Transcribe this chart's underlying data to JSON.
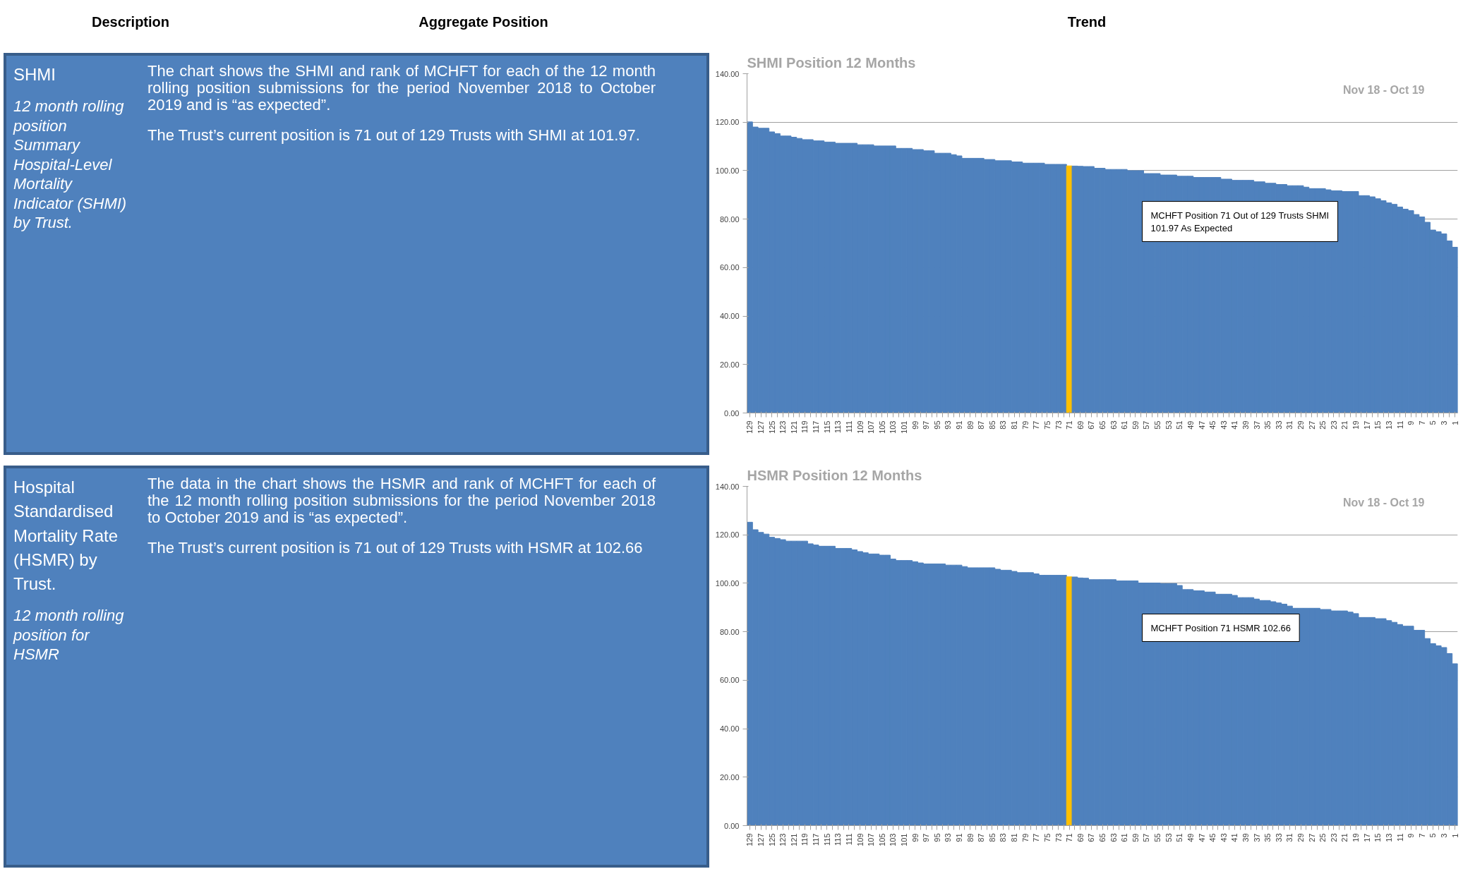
{
  "chart_data": [
    {
      "type": "other",
      "annotations": [
        "Description",
        "Aggregate Position",
        "Trend"
      ]
    },
    {
      "type": "other",
      "title": "SHMI",
      "annotations": [
        "12 month rolling position Summary Hospital-Level Mortality Indicator (SHMI) by Trust.",
        "The chart shows the SHMI and rank of MCHFT for each of the 12 month rolling position submissions for the period November 2018 to October 2019 and is “as expected”.",
        "The Trust’s current position is 71 out of 129 Trusts with SHMI at 101.97."
      ]
    },
    {
      "type": "bar",
      "title": "SHMI Position 12 Months",
      "annotations": [
        "Nov 18 - Oct 19",
        "MCHFT Position 71 Out of 129 Trusts SHMI 101.97 As Expected"
      ],
      "ylim": [
        0,
        140
      ],
      "yticks": [
        {
          "value": 0,
          "label": "0.00"
        },
        {
          "value": 20,
          "label": "20.00"
        },
        {
          "value": 40,
          "label": "40.00"
        },
        {
          "value": 60,
          "label": "60.00"
        },
        {
          "value": 80,
          "label": "80.00"
        },
        {
          "value": 100,
          "label": "100.00"
        },
        {
          "value": 120,
          "label": "120.00"
        },
        {
          "value": 140,
          "label": "140.00"
        }
      ],
      "grid": "y",
      "categories": [
        "129",
        null,
        "127",
        null,
        "125",
        null,
        "123",
        null,
        "121",
        null,
        "119",
        null,
        "117",
        null,
        "115",
        null,
        "113",
        null,
        "111",
        null,
        "109",
        null,
        "107",
        null,
        "105",
        null,
        "103",
        null,
        "101",
        null,
        "99",
        null,
        "97",
        null,
        "95",
        null,
        "93",
        null,
        "91",
        null,
        "89",
        null,
        "87",
        null,
        "85",
        null,
        "83",
        null,
        "81",
        null,
        "79",
        null,
        "77",
        null,
        "75",
        null,
        "73",
        null,
        "71",
        null,
        "69",
        null,
        "67",
        null,
        "65",
        null,
        "63",
        null,
        "61",
        null,
        "59",
        null,
        "57",
        null,
        "55",
        null,
        "53",
        null,
        "51",
        null,
        "49",
        null,
        "47",
        null,
        "45",
        null,
        "43",
        null,
        "41",
        null,
        "39",
        null,
        "37",
        null,
        "35",
        null,
        "33",
        null,
        "31",
        null,
        "29",
        null,
        "27",
        null,
        "25",
        null,
        "23",
        null,
        "21",
        null,
        "19",
        null,
        "17",
        null,
        "15",
        null,
        "13",
        null,
        "11",
        null,
        "9",
        null,
        "7",
        null,
        "5",
        null,
        "3",
        null,
        "1"
      ],
      "values": [
        120.1,
        118.0,
        117.5,
        117.5,
        116.0,
        115.3,
        114.3,
        114.3,
        113.8,
        113.3,
        112.8,
        112.8,
        112.3,
        112.3,
        111.8,
        111.8,
        111.3,
        111.3,
        111.3,
        111.3,
        110.7,
        110.7,
        110.7,
        110.2,
        110.2,
        110.2,
        110.2,
        109.2,
        109.2,
        109.2,
        108.7,
        108.7,
        108.2,
        108.2,
        107.2,
        107.2,
        107.2,
        106.6,
        106.1,
        105.1,
        105.1,
        105.1,
        105.1,
        104.6,
        104.6,
        104.1,
        104.1,
        104.1,
        103.6,
        103.6,
        103.1,
        103.1,
        103.1,
        103.1,
        102.6,
        102.6,
        102.6,
        102.6,
        101.97,
        101.9,
        101.8,
        101.7,
        101.7,
        101.0,
        101.0,
        100.5,
        100.5,
        100.5,
        100.5,
        100.0,
        100.0,
        100.0,
        98.8,
        98.8,
        98.8,
        98.2,
        98.2,
        98.2,
        97.7,
        97.7,
        97.7,
        97.2,
        97.2,
        97.2,
        97.2,
        97.2,
        96.5,
        96.5,
        96.0,
        96.0,
        96.0,
        96.0,
        95.4,
        95.4,
        94.8,
        94.8,
        94.3,
        94.3,
        93.8,
        93.8,
        93.8,
        93.2,
        92.6,
        92.6,
        92.6,
        92.1,
        91.7,
        91.7,
        91.4,
        91.4,
        91.4,
        89.7,
        89.7,
        89.2,
        88.4,
        87.6,
        86.7,
        86.1,
        85.0,
        84.1,
        83.5,
        81.9,
        80.9,
        78.7,
        75.5,
        74.8,
        73.9,
        71.0,
        68.4
      ],
      "colors": [
        "#4f81bd",
        "#4f81bd",
        "#4f81bd",
        "#4f81bd",
        "#4f81bd",
        "#4f81bd",
        "#4f81bd",
        "#4f81bd",
        "#4f81bd",
        "#4f81bd",
        "#4f81bd",
        "#4f81bd",
        "#4f81bd",
        "#4f81bd",
        "#4f81bd",
        "#4f81bd",
        "#4f81bd",
        "#4f81bd",
        "#4f81bd",
        "#4f81bd",
        "#4f81bd",
        "#4f81bd",
        "#4f81bd",
        "#4f81bd",
        "#4f81bd",
        "#4f81bd",
        "#4f81bd",
        "#4f81bd",
        "#4f81bd",
        "#4f81bd",
        "#4f81bd",
        "#4f81bd",
        "#4f81bd",
        "#4f81bd",
        "#4f81bd",
        "#4f81bd",
        "#4f81bd",
        "#4f81bd",
        "#4f81bd",
        "#4f81bd",
        "#4f81bd",
        "#4f81bd",
        "#4f81bd",
        "#4f81bd",
        "#4f81bd",
        "#4f81bd",
        "#4f81bd",
        "#4f81bd",
        "#4f81bd",
        "#4f81bd",
        "#4f81bd",
        "#4f81bd",
        "#4f81bd",
        "#4f81bd",
        "#4f81bd",
        "#4f81bd",
        "#4f81bd",
        "#4f81bd",
        "#ffc000",
        "#4f81bd",
        "#4f81bd",
        "#4f81bd",
        "#4f81bd",
        "#4f81bd",
        "#4f81bd",
        "#4f81bd",
        "#4f81bd",
        "#4f81bd",
        "#4f81bd",
        "#4f81bd",
        "#4f81bd",
        "#4f81bd",
        "#4f81bd",
        "#4f81bd",
        "#4f81bd",
        "#4f81bd",
        "#4f81bd",
        "#4f81bd",
        "#4f81bd",
        "#4f81bd",
        "#4f81bd",
        "#4f81bd",
        "#4f81bd",
        "#4f81bd",
        "#4f81bd",
        "#4f81bd",
        "#4f81bd",
        "#4f81bd",
        "#4f81bd",
        "#4f81bd",
        "#4f81bd",
        "#4f81bd",
        "#4f81bd",
        "#4f81bd",
        "#4f81bd",
        "#4f81bd",
        "#4f81bd",
        "#4f81bd",
        "#4f81bd",
        "#4f81bd",
        "#4f81bd",
        "#4f81bd",
        "#4f81bd",
        "#4f81bd",
        "#4f81bd",
        "#4f81bd",
        "#4f81bd",
        "#4f81bd",
        "#4f81bd",
        "#4f81bd",
        "#4f81bd",
        "#4f81bd",
        "#4f81bd",
        "#4f81bd",
        "#4f81bd",
        "#4f81bd",
        "#4f81bd",
        "#4f81bd",
        "#4f81bd",
        "#4f81bd",
        "#4f81bd",
        "#4f81bd",
        "#4f81bd",
        "#4f81bd",
        "#4f81bd",
        "#4f81bd",
        "#4f81bd",
        "#4f81bd",
        "#4f81bd"
      ]
    },
    {
      "type": "other",
      "title": "Hospital Standardised Mortality Rate (HSMR) by Trust.",
      "annotations": [
        "12 month rolling position for HSMR",
        "The data in the chart shows the HSMR and rank of MCHFT for each of the 12 month rolling position submissions for the period November 2018 to October 2019 and is “as expected”.",
        "The Trust’s current position is 71 out of 129 Trusts with HSMR at 102.66"
      ]
    },
    {
      "type": "bar",
      "title": "HSMR Position 12 Months",
      "annotations": [
        "Nov 18 - Oct 19",
        "MCHFT Position 71 HSMR 102.66"
      ],
      "ylim": [
        0,
        140
      ],
      "yticks": [
        {
          "value": 0,
          "label": "0.00"
        },
        {
          "value": 20,
          "label": "20.00"
        },
        {
          "value": 40,
          "label": "40.00"
        },
        {
          "value": 60,
          "label": "60.00"
        },
        {
          "value": 80,
          "label": "80.00"
        },
        {
          "value": 100,
          "label": "100.00"
        },
        {
          "value": 120,
          "label": "120.00"
        },
        {
          "value": 140,
          "label": "140.00"
        }
      ],
      "grid": "y",
      "categories": [
        "129",
        null,
        "127",
        null,
        "125",
        null,
        "123",
        null,
        "121",
        null,
        "119",
        null,
        "117",
        null,
        "115",
        null,
        "113",
        null,
        "111",
        null,
        "109",
        null,
        "107",
        null,
        "105",
        null,
        "103",
        null,
        "101",
        null,
        "99",
        null,
        "97",
        null,
        "95",
        null,
        "93",
        null,
        "91",
        null,
        "89",
        null,
        "87",
        null,
        "85",
        null,
        "83",
        null,
        "81",
        null,
        "79",
        null,
        "77",
        null,
        "75",
        null,
        "73",
        null,
        "71",
        null,
        "69",
        null,
        "67",
        null,
        "65",
        null,
        "63",
        null,
        "61",
        null,
        "59",
        null,
        "57",
        null,
        "55",
        null,
        "53",
        null,
        "51",
        null,
        "49",
        null,
        "47",
        null,
        "45",
        null,
        "43",
        null,
        "41",
        null,
        "39",
        null,
        "37",
        null,
        "35",
        null,
        "33",
        null,
        "31",
        null,
        "29",
        null,
        "27",
        null,
        "25",
        null,
        "23",
        null,
        "21",
        null,
        "19",
        null,
        "17",
        null,
        "15",
        null,
        "13",
        null,
        "11",
        null,
        "9",
        null,
        "7",
        null,
        "5",
        null,
        "3",
        null,
        "1"
      ],
      "values": [
        125.2,
        122.1,
        121.0,
        120.3,
        119.0,
        118.5,
        118.0,
        117.4,
        117.4,
        117.4,
        117.4,
        116.3,
        115.8,
        115.3,
        115.3,
        115.3,
        114.4,
        114.4,
        114.4,
        113.8,
        113.1,
        112.6,
        112.1,
        112.1,
        111.6,
        111.6,
        110.0,
        109.4,
        109.4,
        109.4,
        108.9,
        108.4,
        108.0,
        108.0,
        108.0,
        108.0,
        107.5,
        107.5,
        107.5,
        106.9,
        106.4,
        106.4,
        106.4,
        106.4,
        106.4,
        105.8,
        105.4,
        105.4,
        104.9,
        104.4,
        104.4,
        104.4,
        103.9,
        103.3,
        103.3,
        103.3,
        103.3,
        103.3,
        102.66,
        102.6,
        102.2,
        102.1,
        101.5,
        101.5,
        101.5,
        101.5,
        101.5,
        101.0,
        101.0,
        101.0,
        101.0,
        100.1,
        100.1,
        100.1,
        100.1,
        99.9,
        99.9,
        99.9,
        99.1,
        97.4,
        97.4,
        96.9,
        96.9,
        96.4,
        96.4,
        95.5,
        95.5,
        95.5,
        95.0,
        94.1,
        94.1,
        94.1,
        93.5,
        92.9,
        92.9,
        92.4,
        91.9,
        91.4,
        90.6,
        89.7,
        89.7,
        89.7,
        89.7,
        89.7,
        89.2,
        89.2,
        88.6,
        88.6,
        88.6,
        88.1,
        87.5,
        85.9,
        85.9,
        85.9,
        85.4,
        85.4,
        84.6,
        83.9,
        83.0,
        82.3,
        82.3,
        80.6,
        80.6,
        77.2,
        75.1,
        74.2,
        73.5,
        71.0,
        66.8
      ],
      "colors": [
        "#4f81bd",
        "#4f81bd",
        "#4f81bd",
        "#4f81bd",
        "#4f81bd",
        "#4f81bd",
        "#4f81bd",
        "#4f81bd",
        "#4f81bd",
        "#4f81bd",
        "#4f81bd",
        "#4f81bd",
        "#4f81bd",
        "#4f81bd",
        "#4f81bd",
        "#4f81bd",
        "#4f81bd",
        "#4f81bd",
        "#4f81bd",
        "#4f81bd",
        "#4f81bd",
        "#4f81bd",
        "#4f81bd",
        "#4f81bd",
        "#4f81bd",
        "#4f81bd",
        "#4f81bd",
        "#4f81bd",
        "#4f81bd",
        "#4f81bd",
        "#4f81bd",
        "#4f81bd",
        "#4f81bd",
        "#4f81bd",
        "#4f81bd",
        "#4f81bd",
        "#4f81bd",
        "#4f81bd",
        "#4f81bd",
        "#4f81bd",
        "#4f81bd",
        "#4f81bd",
        "#4f81bd",
        "#4f81bd",
        "#4f81bd",
        "#4f81bd",
        "#4f81bd",
        "#4f81bd",
        "#4f81bd",
        "#4f81bd",
        "#4f81bd",
        "#4f81bd",
        "#4f81bd",
        "#4f81bd",
        "#4f81bd",
        "#4f81bd",
        "#4f81bd",
        "#4f81bd",
        "#ffc000",
        "#4f81bd",
        "#4f81bd",
        "#4f81bd",
        "#4f81bd",
        "#4f81bd",
        "#4f81bd",
        "#4f81bd",
        "#4f81bd",
        "#4f81bd",
        "#4f81bd",
        "#4f81bd",
        "#4f81bd",
        "#4f81bd",
        "#4f81bd",
        "#4f81bd",
        "#4f81bd",
        "#4f81bd",
        "#4f81bd",
        "#4f81bd",
        "#4f81bd",
        "#4f81bd",
        "#4f81bd",
        "#4f81bd",
        "#4f81bd",
        "#4f81bd",
        "#4f81bd",
        "#4f81bd",
        "#4f81bd",
        "#4f81bd",
        "#4f81bd",
        "#4f81bd",
        "#4f81bd",
        "#4f81bd",
        "#4f81bd",
        "#4f81bd",
        "#4f81bd",
        "#4f81bd",
        "#4f81bd",
        "#4f81bd",
        "#4f81bd",
        "#4f81bd",
        "#4f81bd",
        "#4f81bd",
        "#4f81bd",
        "#4f81bd",
        "#4f81bd",
        "#4f81bd",
        "#4f81bd",
        "#4f81bd",
        "#4f81bd",
        "#4f81bd",
        "#4f81bd",
        "#4f81bd",
        "#4f81bd",
        "#4f81bd",
        "#4f81bd",
        "#4f81bd",
        "#4f81bd",
        "#4f81bd",
        "#4f81bd",
        "#4f81bd",
        "#4f81bd",
        "#4f81bd",
        "#4f81bd",
        "#4f81bd",
        "#4f81bd",
        "#4f81bd",
        "#4f81bd",
        "#4f81bd",
        "#4f81bd"
      ]
    }
  ]
}
